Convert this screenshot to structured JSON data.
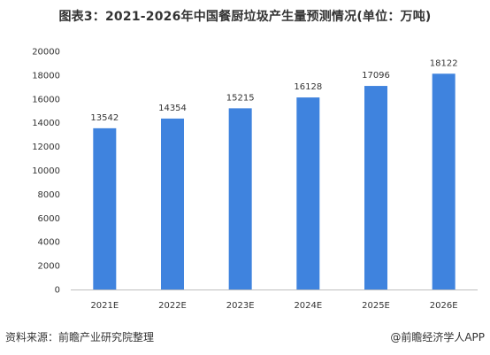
{
  "chart_data": {
    "type": "bar",
    "title": "图表3：2021-2026年中国餐厨垃圾产生量预测情况(单位：万吨)",
    "categories": [
      "2021E",
      "2022E",
      "2023E",
      "2024E",
      "2025E",
      "2026E"
    ],
    "values": [
      13542,
      14354,
      15215,
      16128,
      17096,
      18122
    ],
    "ylim": [
      0,
      20000
    ],
    "yticks": [
      0,
      2000,
      4000,
      6000,
      8000,
      10000,
      12000,
      14000,
      16000,
      18000,
      20000
    ],
    "bar_color": "#3f83de",
    "axis_color": "#bfbfbf",
    "grid": false,
    "data_labels": true
  },
  "footer": {
    "source": "资料来源：前瞻产业研究院整理",
    "brand": "@前瞻经济学人APP"
  }
}
